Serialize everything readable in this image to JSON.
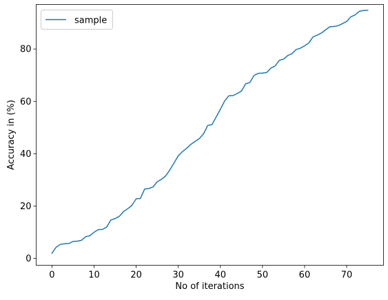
{
  "chart_data": {
    "type": "line",
    "title": "",
    "xlabel": "No of iterations",
    "ylabel": "Accuracy in (%)",
    "xlim": [
      -3.75,
      78.75
    ],
    "ylim": [
      -2.6,
      97.0
    ],
    "xticks": [
      0,
      10,
      20,
      30,
      40,
      50,
      60,
      70
    ],
    "yticks": [
      0,
      20,
      40,
      60,
      80
    ],
    "grid": false,
    "legend": {
      "position": "top-left",
      "entries": [
        "sample"
      ]
    },
    "series": [
      {
        "name": "sample",
        "color": "#1f77b4",
        "x": [
          0,
          1,
          2,
          3,
          4,
          5,
          6,
          7,
          8,
          9,
          10,
          11,
          12,
          13,
          14,
          15,
          16,
          17,
          18,
          19,
          20,
          21,
          22,
          23,
          24,
          25,
          26,
          27,
          28,
          29,
          30,
          31,
          32,
          33,
          34,
          35,
          36,
          37,
          38,
          39,
          40,
          41,
          42,
          43,
          44,
          45,
          46,
          47,
          48,
          49,
          50,
          51,
          52,
          53,
          54,
          55,
          56,
          57,
          58,
          59,
          60,
          61,
          62,
          63,
          64,
          65,
          66,
          67,
          68,
          69,
          70,
          71,
          72,
          73,
          74,
          75
        ],
        "y": [
          2.0,
          4.3,
          5.4,
          5.6,
          5.7,
          6.5,
          6.6,
          6.9,
          8.3,
          8.7,
          10.0,
          11.0,
          11.1,
          12.0,
          14.7,
          15.2,
          16.1,
          17.9,
          19.0,
          20.3,
          22.8,
          22.9,
          26.5,
          26.7,
          27.3,
          29.3,
          30.2,
          31.5,
          33.8,
          36.5,
          39.2,
          40.8,
          42.1,
          43.6,
          44.7,
          45.8,
          47.6,
          50.8,
          51.1,
          54.0,
          57.0,
          60.1,
          62.1,
          62.2,
          63.0,
          63.9,
          66.7,
          67.2,
          69.9,
          70.7,
          70.8,
          71.0,
          72.7,
          73.5,
          75.7,
          76.1,
          77.5,
          78.2,
          79.8,
          80.3,
          81.2,
          82.3,
          84.6,
          85.3,
          86.1,
          87.3,
          88.5,
          88.6,
          88.9,
          89.7,
          90.5,
          92.3,
          93.0,
          94.4,
          94.7,
          94.8
        ]
      }
    ]
  }
}
